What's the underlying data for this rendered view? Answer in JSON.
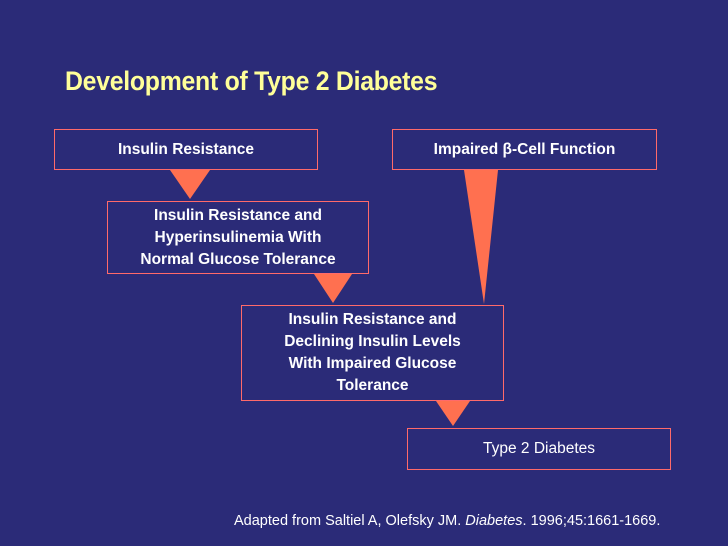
{
  "slide": {
    "title": "Development of Type 2 Diabetes",
    "boxes": {
      "insulin_resistance": "Insulin Resistance",
      "impaired_beta_cell": "Impaired β-Cell Function",
      "hyperinsulinemia": "Insulin Resistance and\nHyperinsulinemia With\nNormal Glucose Tolerance",
      "declining_insulin": "Insulin Resistance and\nDeclining Insulin Levels\nWith Impaired Glucose\nTolerance",
      "type2_diabetes": "Type 2 Diabetes"
    },
    "citation": {
      "prefix": "Adapted from Saltiel A, Olefsky JM. ",
      "journal": "Diabetes",
      "suffix": ". 1996;45:1661-1669."
    }
  },
  "colors": {
    "background": "#2b2b78",
    "title": "#ffff99",
    "arrow": "#ff7050",
    "box_border": "#ff6a6a",
    "text": "#ffffff"
  }
}
